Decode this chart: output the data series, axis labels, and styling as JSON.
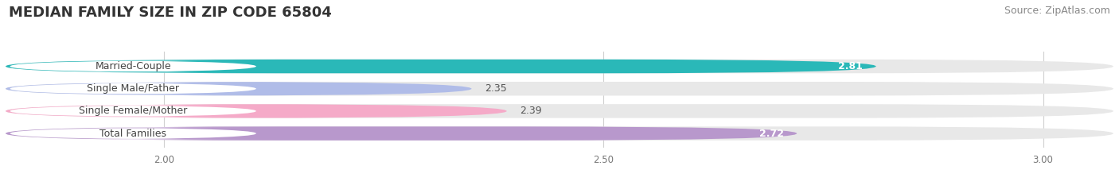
{
  "title": "MEDIAN FAMILY SIZE IN ZIP CODE 65804",
  "source": "Source: ZipAtlas.com",
  "categories": [
    "Married-Couple",
    "Single Male/Father",
    "Single Female/Mother",
    "Total Families"
  ],
  "values": [
    2.81,
    2.35,
    2.39,
    2.72
  ],
  "bar_colors": [
    "#2ab8b8",
    "#b0bce8",
    "#f5aac8",
    "#b898cc"
  ],
  "label_colors": [
    "#ffffff",
    "#555555",
    "#555555",
    "#ffffff"
  ],
  "xlim_min": 1.82,
  "xlim_max": 3.08,
  "xticks": [
    2.0,
    2.5,
    3.0
  ],
  "xtick_labels": [
    "2.00",
    "2.50",
    "3.00"
  ],
  "background_color": "#ffffff",
  "bar_bg_color": "#e8e8e8",
  "grid_color": "#d0d0d0",
  "title_fontsize": 13,
  "source_fontsize": 9,
  "label_fontsize": 9,
  "value_fontsize": 9,
  "bar_height": 0.62
}
